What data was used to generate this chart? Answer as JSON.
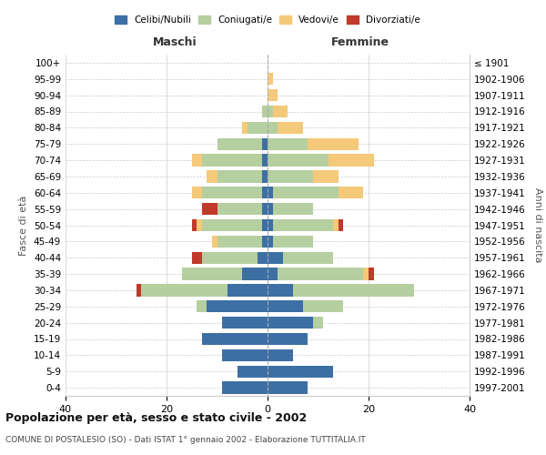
{
  "age_groups": [
    "100+",
    "95-99",
    "90-94",
    "85-89",
    "80-84",
    "75-79",
    "70-74",
    "65-69",
    "60-64",
    "55-59",
    "50-54",
    "45-49",
    "40-44",
    "35-39",
    "30-34",
    "25-29",
    "20-24",
    "15-19",
    "10-14",
    "5-9",
    "0-4"
  ],
  "birth_years": [
    "≤ 1901",
    "1902-1906",
    "1907-1911",
    "1912-1916",
    "1917-1921",
    "1922-1926",
    "1927-1931",
    "1932-1936",
    "1937-1941",
    "1942-1946",
    "1947-1951",
    "1952-1956",
    "1957-1961",
    "1962-1966",
    "1967-1971",
    "1972-1976",
    "1977-1981",
    "1982-1986",
    "1987-1991",
    "1992-1996",
    "1997-2001"
  ],
  "maschi": {
    "celibi": [
      0,
      0,
      0,
      0,
      0,
      1,
      1,
      1,
      1,
      1,
      1,
      1,
      2,
      5,
      8,
      12,
      9,
      13,
      9,
      6,
      9
    ],
    "coniugati": [
      0,
      0,
      0,
      1,
      4,
      9,
      12,
      9,
      12,
      9,
      12,
      9,
      11,
      12,
      17,
      2,
      0,
      0,
      0,
      0,
      0
    ],
    "vedovi": [
      0,
      0,
      0,
      0,
      1,
      0,
      2,
      2,
      2,
      0,
      1,
      1,
      0,
      0,
      0,
      0,
      0,
      0,
      0,
      0,
      0
    ],
    "divorziati": [
      0,
      0,
      0,
      0,
      0,
      0,
      0,
      0,
      0,
      3,
      1,
      0,
      2,
      0,
      1,
      0,
      0,
      0,
      0,
      0,
      0
    ]
  },
  "femmine": {
    "nubili": [
      0,
      0,
      0,
      0,
      0,
      0,
      0,
      0,
      1,
      1,
      1,
      1,
      3,
      2,
      5,
      7,
      9,
      8,
      5,
      13,
      8
    ],
    "coniugate": [
      0,
      0,
      0,
      1,
      2,
      8,
      12,
      9,
      13,
      8,
      12,
      8,
      10,
      17,
      24,
      8,
      2,
      0,
      0,
      0,
      0
    ],
    "vedove": [
      0,
      1,
      2,
      3,
      5,
      10,
      9,
      5,
      5,
      0,
      1,
      0,
      0,
      1,
      0,
      0,
      0,
      0,
      0,
      0,
      0
    ],
    "divorziate": [
      0,
      0,
      0,
      0,
      0,
      0,
      0,
      0,
      0,
      0,
      1,
      0,
      0,
      1,
      0,
      0,
      0,
      0,
      0,
      0,
      0
    ]
  },
  "colors": {
    "celibi": "#3d6fa5",
    "coniugati": "#b5cfa0",
    "vedovi": "#f5c97a",
    "divorziati": "#c0392b"
  },
  "xlim": 40,
  "title": "Popolazione per età, sesso e stato civile - 2002",
  "subtitle": "COMUNE DI POSTALESIO (SO) - Dati ISTAT 1° gennaio 2002 - Elaborazione TUTTITALIA.IT",
  "ylabel_left": "Fasce di età",
  "ylabel_right": "Anni di nascita",
  "xlabel_maschi": "Maschi",
  "xlabel_femmine": "Femmine",
  "legend_labels": [
    "Celibi/Nubili",
    "Coniugati/e",
    "Vedovi/e",
    "Divorziati/e"
  ]
}
